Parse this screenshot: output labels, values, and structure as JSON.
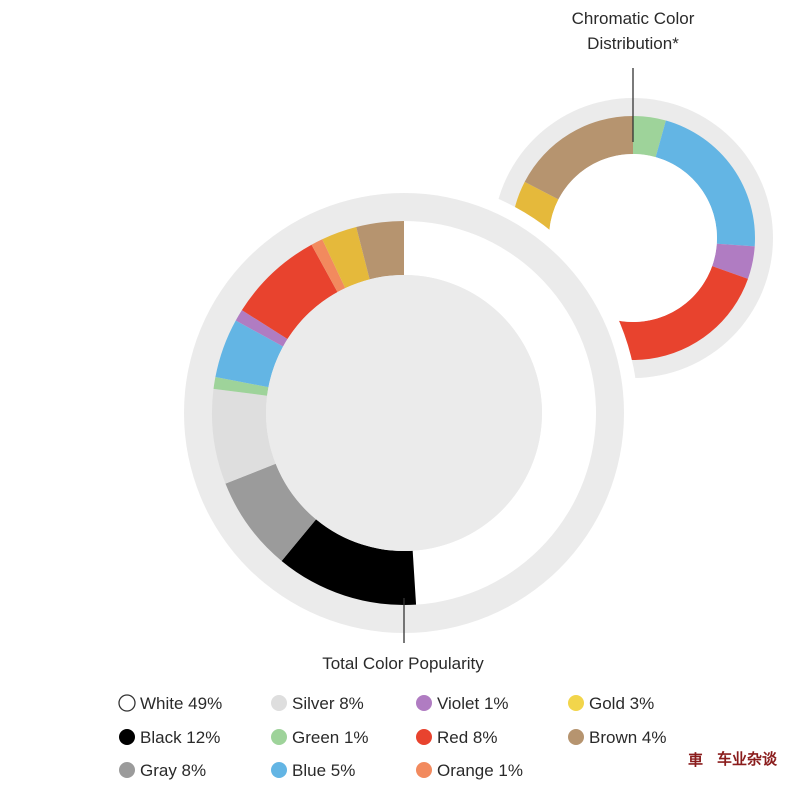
{
  "chart_data": [
    {
      "type": "pie",
      "variant": "donut",
      "title": "Total Color Popularity",
      "slices": [
        {
          "name": "White",
          "value": 49,
          "color": "#ffffff"
        },
        {
          "name": "Black",
          "value": 12,
          "color": "#000000"
        },
        {
          "name": "Gray",
          "value": 8,
          "color": "#9b9b9b"
        },
        {
          "name": "Silver",
          "value": 8,
          "color": "#dedede"
        },
        {
          "name": "Green",
          "value": 1,
          "color": "#9ed39a"
        },
        {
          "name": "Blue",
          "value": 5,
          "color": "#63b5e4"
        },
        {
          "name": "Violet",
          "value": 1,
          "color": "#b07cc2"
        },
        {
          "name": "Red",
          "value": 8,
          "color": "#e8432e"
        },
        {
          "name": "Orange",
          "value": 1,
          "color": "#f28a5e"
        },
        {
          "name": "Gold",
          "value": 3,
          "color": "#e5b93b"
        },
        {
          "name": "Brown",
          "value": 4,
          "color": "#b6946f"
        }
      ]
    },
    {
      "type": "pie",
      "variant": "donut",
      "title": "Chromatic Color Distribution*",
      "slices": [
        {
          "name": "Green",
          "value": 1,
          "color": "#9ed39a"
        },
        {
          "name": "Blue",
          "value": 5,
          "color": "#63b5e4"
        },
        {
          "name": "Violet",
          "value": 1,
          "color": "#b07cc2"
        },
        {
          "name": "Red",
          "value": 8,
          "color": "#e8432e"
        },
        {
          "name": "Orange",
          "value": 1,
          "color": "#f28a5e"
        },
        {
          "name": "Gold",
          "value": 3,
          "color": "#e5b93b"
        },
        {
          "name": "Brown",
          "value": 4,
          "color": "#b6946f"
        }
      ]
    }
  ],
  "legend": {
    "columns": [
      [
        {
          "label": "White 49%",
          "color": "#ffffff"
        },
        {
          "label": "Black 12%",
          "color": "#000000"
        },
        {
          "label": "Gray 8%",
          "color": "#9b9b9b"
        }
      ],
      [
        {
          "label": "Silver 8%",
          "color": "#dedede"
        },
        {
          "label": "Green 1%",
          "color": "#9ed39a"
        },
        {
          "label": "Blue 5%",
          "color": "#63b5e4"
        }
      ],
      [
        {
          "label": "Violet 1%",
          "color": "#b07cc2"
        },
        {
          "label": "Red 8%",
          "color": "#e8432e"
        },
        {
          "label": "Orange 1%",
          "color": "#f28a5e"
        }
      ],
      [
        {
          "label": "Gold 3%",
          "color": "#f2d54b"
        },
        {
          "label": "Brown 4%",
          "color": "#b6946f"
        }
      ]
    ]
  },
  "colors": {
    "ring_bg": "#ebebeb",
    "hole": "#ebebeb",
    "text": "#2a2a2a"
  },
  "watermark": {
    "text": "车业杂谈",
    "logo_char": "車"
  }
}
